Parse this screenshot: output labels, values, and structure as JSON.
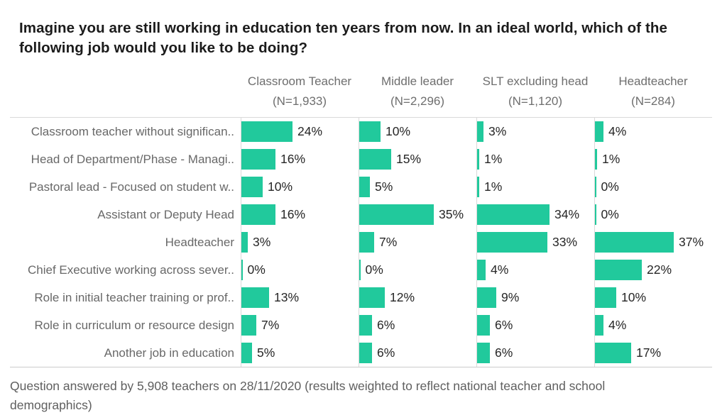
{
  "title": "Imagine you are still working in education ten years from now. In an ideal world, which of the following job would you like to be doing?",
  "footnote": "Question answered by 5,908 teachers on 28/11/2020 (results weighted to reflect national teacher and school demographics)",
  "colors": {
    "bar": "#21c99c",
    "row_label_text": "#686868",
    "header_text": "#6e6e6e",
    "value_text": "#262626",
    "grid_line": "#d9d9d9",
    "title_text": "#1b1b1b"
  },
  "chart_data": {
    "type": "bar",
    "orientation": "horizontal",
    "title": "Imagine you are still working in education ten years from now. In an ideal world, which of the following job would you like to be doing?",
    "categories": [
      "Classroom teacher without significan..",
      "Head of Department/Phase - Managi..",
      "Pastoral lead - Focused on student w..",
      "Assistant or Deputy Head",
      "Headteacher",
      "Chief Executive working across sever..",
      "Role in initial teacher training or prof..",
      "Role in curriculum or resource design",
      "Another job in education"
    ],
    "series": [
      {
        "name": "Classroom Teacher",
        "n_label": "(N=1,933)",
        "values": [
          24,
          16,
          10,
          16,
          3,
          0,
          13,
          7,
          5
        ]
      },
      {
        "name": "Middle leader",
        "n_label": "(N=2,296)",
        "values": [
          10,
          15,
          5,
          35,
          7,
          0,
          12,
          6,
          6
        ]
      },
      {
        "name": "SLT excluding head",
        "n_label": "(N=1,120)",
        "values": [
          3,
          1,
          1,
          34,
          33,
          4,
          9,
          6,
          6
        ]
      },
      {
        "name": "Headteacher",
        "n_label": "(N=284)",
        "values": [
          4,
          1,
          0,
          0,
          37,
          22,
          10,
          4,
          17
        ]
      }
    ],
    "value_suffix": "%",
    "value_labels": true,
    "xlim": [
      0,
      55
    ],
    "grid": "column-baseline-lines-only",
    "legend_position": "column-headers"
  }
}
